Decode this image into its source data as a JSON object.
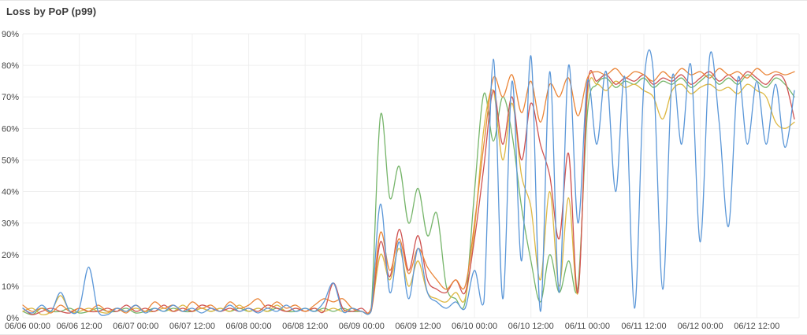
{
  "panel": {
    "title": "Loss by PoP (p99)"
  },
  "chart_data": {
    "type": "line",
    "title": "Loss by PoP (p99)",
    "xlabel": "",
    "ylabel": "",
    "ylim": [
      0,
      90
    ],
    "grid": true,
    "legend_position": "none",
    "y_ticks": [
      0,
      10,
      20,
      30,
      40,
      50,
      60,
      70,
      80,
      90
    ],
    "y_tick_suffix": "%",
    "x_unit": "hours from 06/06 00:00",
    "x_step_hours": 2,
    "x_tick_hours": [
      0,
      12,
      24,
      36,
      48,
      60,
      72,
      84,
      96,
      108,
      120,
      132,
      144,
      156
    ],
    "x_tick_labels": [
      "06/06 00:00",
      "06/06 12:00",
      "06/07 00:00",
      "06/07 12:00",
      "06/08 00:00",
      "06/08 12:00",
      "06/09 00:00",
      "06/09 12:00",
      "06/10 00:00",
      "06/10 12:00",
      "06/11 00:00",
      "06/11 12:00",
      "06/12 00:00",
      "06/12 12:00"
    ],
    "grid_color": "#efefef",
    "series": [
      {
        "name": "green",
        "color": "#76b56a",
        "values": [
          2,
          1,
          3,
          2,
          2,
          3,
          1.5,
          2,
          3,
          2,
          2,
          3,
          1.5,
          2,
          3,
          2,
          3,
          2,
          2,
          3,
          2,
          3,
          2,
          3,
          2,
          3,
          2,
          3,
          2,
          2,
          3,
          2,
          3,
          2,
          3,
          2,
          2,
          2,
          64,
          38,
          48,
          30,
          41,
          26,
          33,
          10,
          6,
          5,
          40,
          71,
          56,
          70,
          58,
          35,
          18,
          5,
          20,
          8,
          18,
          10,
          65,
          74,
          76,
          73,
          75,
          74,
          76,
          73,
          75,
          74,
          76,
          73,
          75,
          77,
          74,
          76,
          74,
          77,
          75,
          73,
          76,
          74,
          70
        ]
      },
      {
        "name": "yellow",
        "color": "#ddb843",
        "values": [
          2,
          3,
          1,
          2,
          7,
          2,
          2,
          3,
          2,
          1.5,
          3,
          2,
          3,
          2,
          2,
          3,
          2,
          4,
          2,
          3,
          2,
          3,
          2,
          4,
          2,
          3,
          2,
          4,
          2,
          3,
          2,
          3,
          2,
          3,
          2,
          3,
          2,
          2,
          20,
          12,
          22,
          10,
          18,
          8,
          6,
          5,
          8,
          6,
          28,
          60,
          72,
          50,
          68,
          45,
          35,
          12,
          40,
          10,
          38,
          8,
          70,
          74,
          72,
          75,
          73,
          74,
          72,
          70,
          63,
          72,
          74,
          71,
          73,
          74,
          72,
          73,
          71,
          74,
          72,
          70,
          62,
          60,
          62
        ]
      },
      {
        "name": "red",
        "color": "#cf5352",
        "values": [
          3,
          1,
          2,
          3,
          2,
          1.5,
          3,
          2,
          2,
          3,
          2,
          4,
          2,
          3,
          2,
          4,
          2,
          3,
          2,
          4,
          3,
          2,
          3,
          2,
          3,
          2,
          4,
          3,
          2,
          3,
          2,
          3,
          2,
          11,
          3,
          2,
          3,
          2,
          24,
          13,
          28,
          15,
          26,
          12,
          9,
          8,
          12,
          8,
          25,
          48,
          72,
          55,
          70,
          50,
          68,
          55,
          45,
          25,
          52,
          8,
          73,
          75,
          77,
          74,
          76,
          75,
          77,
          74,
          76,
          75,
          77,
          74,
          76,
          78,
          75,
          77,
          75,
          78,
          76,
          74,
          77,
          75,
          63
        ]
      },
      {
        "name": "orange",
        "color": "#ea8538",
        "values": [
          4,
          2,
          3,
          1.5,
          4,
          2,
          3,
          2,
          4,
          2,
          3,
          1.5,
          4,
          2,
          5,
          3,
          4,
          2,
          5,
          3,
          4,
          2,
          5,
          3,
          4,
          6,
          3,
          5,
          3,
          4,
          2,
          4,
          6,
          5,
          6,
          3,
          2,
          3,
          27,
          15,
          25,
          14,
          22,
          16,
          12,
          9,
          12,
          10,
          30,
          55,
          76,
          70,
          77,
          65,
          75,
          62,
          74,
          70,
          76,
          64,
          76,
          78,
          77,
          79,
          76,
          78,
          77,
          75,
          78,
          76,
          79,
          77,
          78,
          76,
          79,
          77,
          78,
          76,
          79,
          77,
          78,
          77,
          78
        ]
      },
      {
        "name": "blue",
        "color": "#5b97d8",
        "values": [
          3,
          1.5,
          4,
          2,
          8,
          2,
          3,
          16,
          2,
          1,
          3,
          2,
          4,
          1.5,
          3,
          2,
          4,
          2,
          3,
          1.5,
          3,
          2,
          4,
          2,
          3,
          1.5,
          3,
          2,
          4,
          2,
          3,
          2,
          5,
          11,
          2,
          3,
          2,
          2,
          36,
          8,
          24,
          6,
          22,
          8,
          5,
          3,
          5,
          3,
          15,
          5,
          82,
          6,
          75,
          18,
          83,
          2,
          78,
          8,
          80,
          30,
          75,
          55,
          78,
          40,
          76,
          3,
          74,
          78,
          9,
          76,
          55,
          80,
          24,
          83,
          62,
          29,
          76,
          55,
          75,
          55,
          74,
          54,
          72
        ]
      }
    ]
  }
}
